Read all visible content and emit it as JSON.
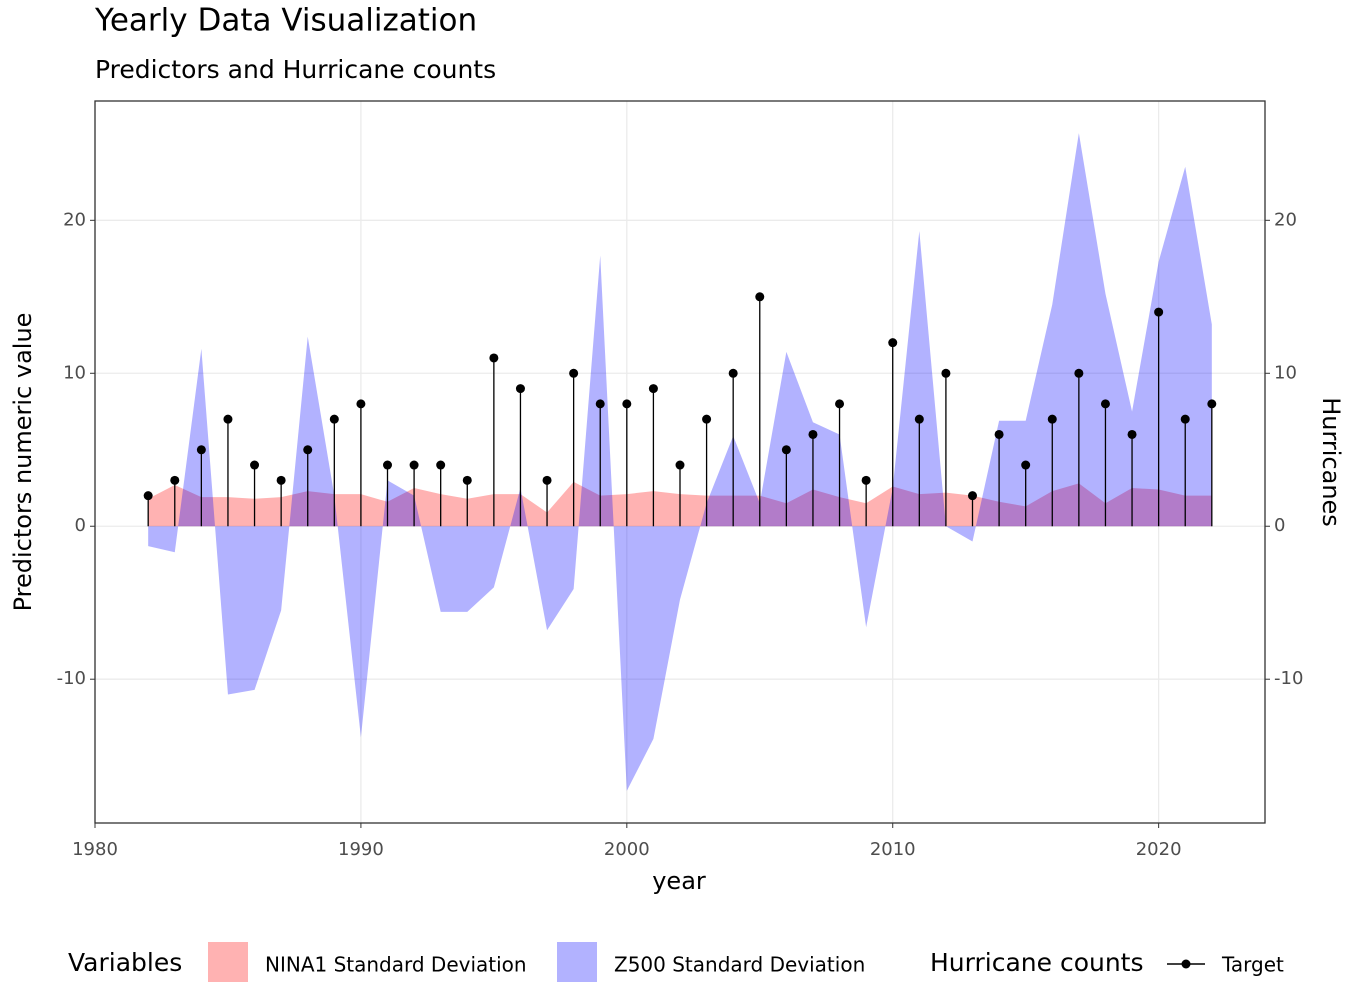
{
  "chart_data": {
    "type": "area_lollipop",
    "title": "Yearly Data Visualization",
    "subtitle": "Predictors and Hurricane counts",
    "x_label": "year",
    "y_label": "Predictors numeric value",
    "y2_label": "Hurricanes",
    "legend_fill_title": "Variables",
    "legend_point_title": "Hurricane counts",
    "x": [
      1982,
      1983,
      1984,
      1985,
      1986,
      1987,
      1988,
      1989,
      1990,
      1991,
      1992,
      1993,
      1994,
      1995,
      1996,
      1997,
      1998,
      1999,
      2000,
      2001,
      2002,
      2003,
      2004,
      2005,
      2006,
      2007,
      2008,
      2009,
      2010,
      2011,
      2012,
      2013,
      2014,
      2015,
      2016,
      2017,
      2018,
      2019,
      2020,
      2021,
      2022
    ],
    "series": [
      {
        "name": "NINA1 Standard Deviation",
        "kind": "area",
        "color": "#ff0000",
        "values": [
          1.8,
          2.7,
          1.9,
          1.9,
          1.8,
          1.9,
          2.3,
          2.1,
          2.1,
          1.6,
          2.5,
          2.1,
          1.8,
          2.1,
          2.1,
          0.9,
          2.9,
          2.0,
          2.1,
          2.3,
          2.1,
          2.0,
          2.0,
          2.0,
          1.5,
          2.4,
          1.9,
          1.5,
          2.6,
          2.1,
          2.2,
          2.0,
          1.6,
          1.3,
          2.3,
          2.8,
          1.5,
          2.5,
          2.4,
          2.0,
          2.0
        ]
      },
      {
        "name": "Z500 Standard Deviation",
        "kind": "area",
        "color": "#0000ff",
        "values": [
          -1.3,
          -1.7,
          11.6,
          -11.0,
          -10.7,
          -5.5,
          12.4,
          2.0,
          -13.8,
          3.0,
          2.0,
          -5.6,
          -5.6,
          -4.0,
          2.5,
          -6.8,
          -4.1,
          17.7,
          -17.3,
          -13.9,
          -4.8,
          1.5,
          5.9,
          1.5,
          11.4,
          6.8,
          6.0,
          -6.6,
          2.5,
          19.3,
          0,
          -1.0,
          6.9,
          6.9,
          14.5,
          25.7,
          15.2,
          7.5,
          17.3,
          23.5,
          13.2
        ]
      },
      {
        "name": "Target",
        "kind": "lollipop",
        "axis": "y2",
        "color": "#000000",
        "values": [
          2,
          3,
          5,
          7,
          4,
          3,
          5,
          7,
          8,
          4,
          4,
          4,
          3,
          11,
          9,
          3,
          10,
          8,
          8,
          9,
          4,
          7,
          10,
          15,
          5,
          6,
          8,
          3,
          12,
          7,
          10,
          2,
          6,
          4,
          7,
          10,
          8,
          6,
          14,
          7,
          8
        ]
      }
    ],
    "xlim": [
      1980,
      2024
    ],
    "xticks": [
      1980,
      1990,
      2000,
      2010,
      2020
    ],
    "ylim": [
      -19.4,
      27.8
    ],
    "yticks": [
      -10,
      0,
      10,
      20
    ],
    "y2lim": [
      -19.4,
      27.8
    ],
    "y2ticks": [
      -10,
      0,
      10,
      20
    ],
    "grid": true,
    "area_opacity": 0.3,
    "legend_position": "bottom"
  }
}
